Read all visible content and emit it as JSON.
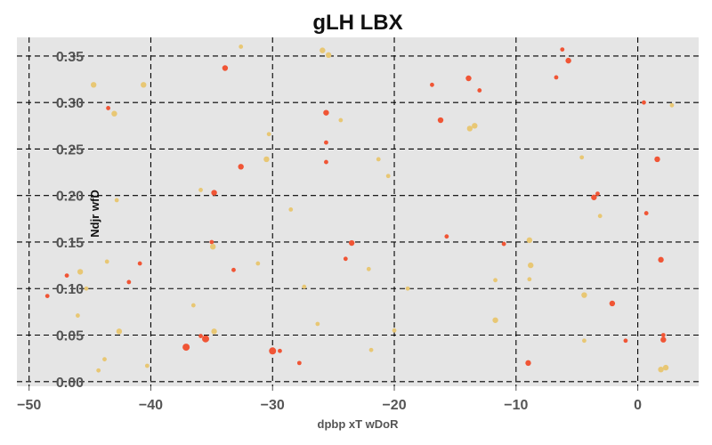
{
  "chart_data": {
    "type": "scatter",
    "title": "gLH  LBX",
    "xlabel": "dpbp  xT wDoR",
    "ylabel": "Ndjr wfD",
    "xlim": [
      -51,
      5
    ],
    "ylim": [
      -0.005,
      0.37
    ],
    "x_ticks": [
      -50,
      -40,
      -30,
      -20,
      -10,
      0
    ],
    "y_ticks": [
      0.0,
      0.05,
      0.1,
      0.15,
      0.2,
      0.25,
      0.3,
      0.35
    ],
    "x_tick_labels": [
      "−50",
      "−40",
      "−30",
      "−20",
      "−10",
      "0"
    ],
    "y_tick_labels": [
      "0.00",
      "0.05",
      "0.10",
      "0.15",
      "0.20",
      "0.25",
      "0.30",
      "0.35"
    ],
    "grid": true,
    "background": "#e5e5e5",
    "series": [
      {
        "color": "#f05535",
        "points": [
          [
            -48.5,
            0.092,
            3
          ],
          [
            -46.9,
            0.114,
            3
          ],
          [
            -43.5,
            0.294,
            3
          ],
          [
            -41.8,
            0.107,
            3
          ],
          [
            -40.9,
            0.127,
            3
          ],
          [
            -37.1,
            0.037,
            5
          ],
          [
            -35.9,
            0.049,
            3
          ],
          [
            -35.5,
            0.046,
            5
          ],
          [
            -35.0,
            0.15,
            3
          ],
          [
            -34.8,
            0.203,
            4
          ],
          [
            -33.9,
            0.337,
            4
          ],
          [
            -33.2,
            0.12,
            3
          ],
          [
            -32.6,
            0.231,
            4
          ],
          [
            -30.0,
            0.033,
            5
          ],
          [
            -29.4,
            0.033,
            3
          ],
          [
            -27.8,
            0.02,
            3
          ],
          [
            -25.6,
            0.289,
            4
          ],
          [
            -25.6,
            0.257,
            3
          ],
          [
            -25.6,
            0.236,
            3
          ],
          [
            -24.0,
            0.132,
            3
          ],
          [
            -23.5,
            0.149,
            4
          ],
          [
            -16.9,
            0.319,
            3
          ],
          [
            -16.2,
            0.281,
            4
          ],
          [
            -15.7,
            0.156,
            3
          ],
          [
            -13.9,
            0.326,
            4
          ],
          [
            -13.0,
            0.313,
            3
          ],
          [
            -11.0,
            0.148,
            3
          ],
          [
            -9.0,
            0.02,
            4
          ],
          [
            -6.7,
            0.327,
            3
          ],
          [
            -6.2,
            0.357,
            3
          ],
          [
            -5.7,
            0.345,
            4
          ],
          [
            -3.6,
            0.198,
            4
          ],
          [
            -3.3,
            0.202,
            3
          ],
          [
            -2.1,
            0.084,
            4
          ],
          [
            -1.0,
            0.044,
            3
          ],
          [
            0.5,
            0.3,
            3
          ],
          [
            0.7,
            0.181,
            3
          ],
          [
            1.6,
            0.239,
            4
          ],
          [
            1.9,
            0.131,
            4
          ],
          [
            2.1,
            0.045,
            4
          ],
          [
            2.1,
            0.05,
            3
          ]
        ]
      },
      {
        "color": "#e8c774",
        "points": [
          [
            -46.0,
            0.071,
            3
          ],
          [
            -45.8,
            0.118,
            4
          ],
          [
            -45.3,
            0.1,
            3
          ],
          [
            -44.7,
            0.319,
            4
          ],
          [
            -44.3,
            0.012,
            3
          ],
          [
            -43.8,
            0.024,
            3
          ],
          [
            -43.6,
            0.129,
            3
          ],
          [
            -43.0,
            0.288,
            4
          ],
          [
            -42.8,
            0.195,
            3
          ],
          [
            -42.6,
            0.054,
            4
          ],
          [
            -40.6,
            0.319,
            4
          ],
          [
            -40.3,
            0.017,
            3
          ],
          [
            -36.5,
            0.082,
            3
          ],
          [
            -35.9,
            0.206,
            3
          ],
          [
            -34.9,
            0.145,
            4
          ],
          [
            -34.8,
            0.054,
            4
          ],
          [
            -32.6,
            0.36,
            3
          ],
          [
            -31.2,
            0.127,
            3
          ],
          [
            -30.5,
            0.239,
            4
          ],
          [
            -30.3,
            0.266,
            3
          ],
          [
            -28.5,
            0.185,
            3
          ],
          [
            -27.4,
            0.102,
            3
          ],
          [
            -26.3,
            0.062,
            3
          ],
          [
            -25.9,
            0.356,
            4
          ],
          [
            -25.4,
            0.351,
            4
          ],
          [
            -24.4,
            0.281,
            3
          ],
          [
            -22.1,
            0.121,
            3
          ],
          [
            -21.9,
            0.034,
            3
          ],
          [
            -21.3,
            0.239,
            3
          ],
          [
            -20.5,
            0.221,
            3
          ],
          [
            -20.0,
            0.055,
            3
          ],
          [
            -18.9,
            0.1,
            3
          ],
          [
            -13.8,
            0.272,
            4
          ],
          [
            -13.4,
            0.275,
            4
          ],
          [
            -11.7,
            0.109,
            3
          ],
          [
            -11.7,
            0.066,
            4
          ],
          [
            -8.9,
            0.152,
            4
          ],
          [
            -8.9,
            0.11,
            3
          ],
          [
            -8.8,
            0.125,
            4
          ],
          [
            -4.6,
            0.241,
            3
          ],
          [
            -4.4,
            0.093,
            4
          ],
          [
            -4.4,
            0.044,
            3
          ],
          [
            -3.1,
            0.178,
            3
          ],
          [
            1.9,
            0.013,
            4
          ],
          [
            2.3,
            0.015,
            4
          ],
          [
            2.8,
            0.297,
            3
          ]
        ]
      }
    ]
  }
}
